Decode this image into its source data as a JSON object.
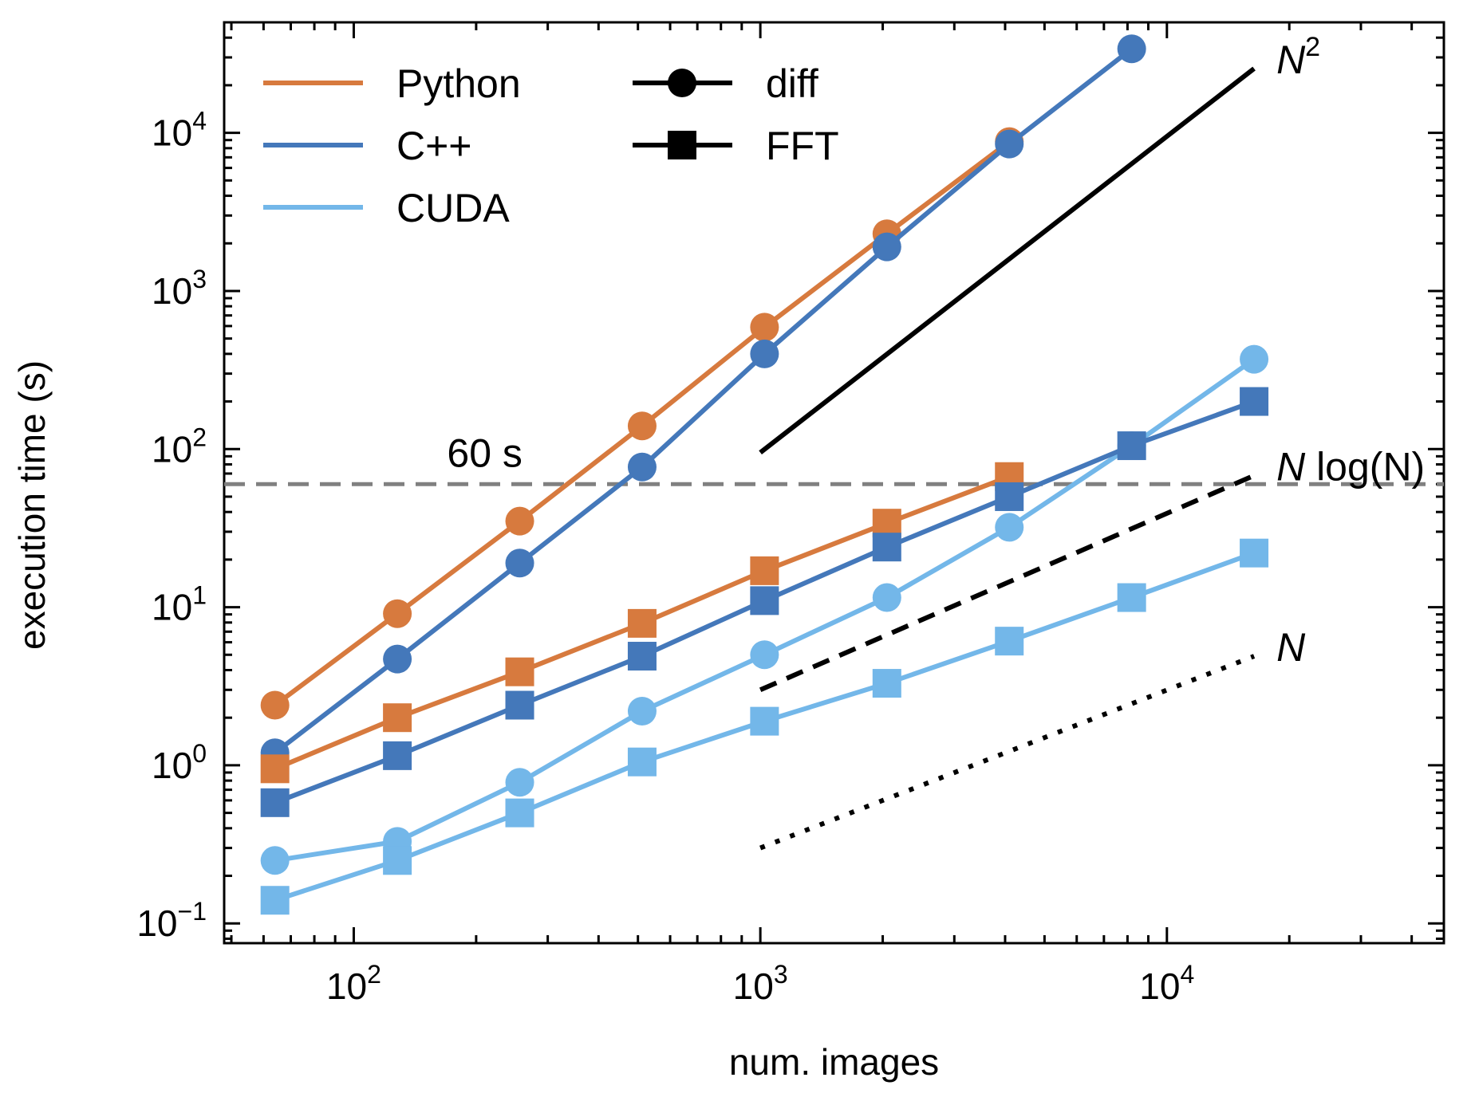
{
  "chart_data": {
    "type": "line",
    "title": "",
    "xlabel": "num. images",
    "ylabel": "execution time (s)",
    "xscale": "log",
    "yscale": "log",
    "xlim": [
      48,
      48000
    ],
    "ylim": [
      0.075,
      50000
    ],
    "grid": false,
    "x_tick_values": [
      100,
      1000,
      10000
    ],
    "x_tick_labels": [
      {
        "base": "10",
        "exp": "2"
      },
      {
        "base": "10",
        "exp": "3"
      },
      {
        "base": "10",
        "exp": "4"
      }
    ],
    "y_tick_values": [
      0.1,
      1,
      10,
      100,
      1000,
      10000
    ],
    "y_tick_labels": [
      {
        "base": "10",
        "exp": "−1"
      },
      {
        "base": "10",
        "exp": "0"
      },
      {
        "base": "10",
        "exp": "1"
      },
      {
        "base": "10",
        "exp": "2"
      },
      {
        "base": "10",
        "exp": "3"
      },
      {
        "base": "10",
        "exp": "4"
      }
    ],
    "colors": {
      "Python": "#D77A3E",
      "C++": "#4478BA",
      "CUDA": "#73B7E9",
      "reference": "#000000",
      "threshold": "#808080"
    },
    "legend": {
      "placement": "top-left",
      "colors": [
        {
          "label": "Python",
          "color": "#D77A3E"
        },
        {
          "label": "C++",
          "color": "#4478BA"
        },
        {
          "label": "CUDA",
          "color": "#73B7E9"
        }
      ],
      "markers": [
        {
          "label": "diff",
          "marker": "circle"
        },
        {
          "label": "FFT",
          "marker": "square"
        }
      ]
    },
    "series": [
      {
        "implementation": "Python",
        "method": "diff",
        "marker": "circle",
        "x": [
          64,
          128,
          256,
          512,
          1024,
          2048,
          4096
        ],
        "y": [
          2.4,
          9.1,
          35,
          140,
          590,
          2300,
          8800
        ]
      },
      {
        "implementation": "C++",
        "method": "diff",
        "marker": "circle",
        "x": [
          64,
          128,
          256,
          512,
          1024,
          2048,
          4096,
          8192
        ],
        "y": [
          1.2,
          4.7,
          19,
          77,
          400,
          1900,
          8500,
          34000
        ]
      },
      {
        "implementation": "CUDA",
        "method": "diff",
        "marker": "circle",
        "x": [
          64,
          128,
          256,
          512,
          1024,
          2048,
          4096,
          8192,
          16384
        ],
        "y": [
          0.25,
          0.33,
          0.78,
          2.2,
          5.0,
          11.5,
          32,
          105,
          370
        ]
      },
      {
        "implementation": "Python",
        "method": "FFT",
        "marker": "square",
        "x": [
          64,
          128,
          256,
          512,
          1024,
          2048,
          4096
        ],
        "y": [
          0.95,
          2.0,
          3.9,
          7.9,
          17,
          34,
          67
        ]
      },
      {
        "implementation": "C++",
        "method": "FFT",
        "marker": "square",
        "x": [
          64,
          128,
          256,
          512,
          1024,
          2048,
          4096,
          8192,
          16384
        ],
        "y": [
          0.58,
          1.15,
          2.4,
          4.9,
          11,
          24,
          50,
          105,
          200
        ]
      },
      {
        "implementation": "CUDA",
        "method": "FFT",
        "marker": "square",
        "x": [
          64,
          128,
          256,
          512,
          1024,
          2048,
          4096,
          8192,
          16384
        ],
        "y": [
          0.14,
          0.25,
          0.5,
          1.05,
          1.9,
          3.3,
          6.1,
          11.5,
          22
        ]
      }
    ],
    "reference_lines": [
      {
        "label_main": "N",
        "label_sup": "2",
        "label_rest": "",
        "style": "solid",
        "x": [
          1000,
          16384
        ],
        "y": [
          95,
          25500
        ]
      },
      {
        "label_main": "N",
        "label_sup": "",
        "label_rest": " log(N)",
        "style": "dashed",
        "x": [
          1000,
          16384
        ],
        "y": [
          3.0,
          68
        ]
      },
      {
        "label_main": "N",
        "label_sup": "",
        "label_rest": "",
        "style": "dotted",
        "x": [
          1000,
          16384
        ],
        "y": [
          0.3,
          4.9
        ]
      }
    ],
    "threshold": {
      "value": 60,
      "label": "60 s",
      "style": "dashed"
    }
  }
}
